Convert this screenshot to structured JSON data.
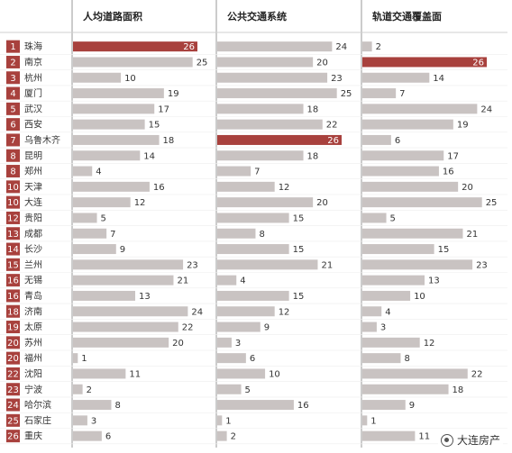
{
  "colors": {
    "bar": "#c9c3c2",
    "highlight": "#a8413d",
    "rank_badge": "#a8413d",
    "grid": "#cfcfcf",
    "divider": "#9a9a9a"
  },
  "watermark": {
    "label": "大连房产",
    "icon": "wechat-channel-icon"
  },
  "chart_data": {
    "type": "bar",
    "orientation": "horizontal",
    "grid": true,
    "xlim": [
      0,
      26
    ],
    "columns": [
      {
        "title": "人均道路面积",
        "highlight_index": 0
      },
      {
        "title": "公共交通系统",
        "highlight_index": 6
      },
      {
        "title": "轨道交通覆盖面",
        "highlight_index": 1
      }
    ],
    "rows": [
      {
        "rank": "1",
        "city": "珠海",
        "values": [
          26,
          24,
          2
        ]
      },
      {
        "rank": "2",
        "city": "南京",
        "values": [
          25,
          20,
          26
        ]
      },
      {
        "rank": "3",
        "city": "杭州",
        "values": [
          10,
          23,
          14
        ]
      },
      {
        "rank": "4",
        "city": "厦门",
        "values": [
          19,
          25,
          7
        ]
      },
      {
        "rank": "5",
        "city": "武汉",
        "values": [
          17,
          18,
          24
        ]
      },
      {
        "rank": "6",
        "city": "西安",
        "values": [
          15,
          22,
          19
        ]
      },
      {
        "rank": "7",
        "city": "乌鲁木齐",
        "values": [
          18,
          26,
          6
        ]
      },
      {
        "rank": "8",
        "city": "昆明",
        "values": [
          14,
          18,
          17
        ]
      },
      {
        "rank": "8",
        "city": "郑州",
        "values": [
          4,
          7,
          16
        ]
      },
      {
        "rank": "10",
        "city": "天津",
        "values": [
          16,
          12,
          20
        ]
      },
      {
        "rank": "10",
        "city": "大连",
        "values": [
          12,
          20,
          25
        ]
      },
      {
        "rank": "12",
        "city": "贵阳",
        "values": [
          5,
          15,
          5
        ]
      },
      {
        "rank": "13",
        "city": "成都",
        "values": [
          7,
          8,
          21
        ]
      },
      {
        "rank": "14",
        "city": "长沙",
        "values": [
          9,
          15,
          15
        ]
      },
      {
        "rank": "15",
        "city": "兰州",
        "values": [
          23,
          21,
          23
        ]
      },
      {
        "rank": "16",
        "city": "无锡",
        "values": [
          21,
          4,
          13
        ]
      },
      {
        "rank": "16",
        "city": "青岛",
        "values": [
          13,
          15,
          10
        ]
      },
      {
        "rank": "18",
        "city": "济南",
        "values": [
          24,
          12,
          4
        ]
      },
      {
        "rank": "19",
        "city": "太原",
        "values": [
          22,
          9,
          3
        ]
      },
      {
        "rank": "20",
        "city": "苏州",
        "values": [
          20,
          3,
          12
        ]
      },
      {
        "rank": "20",
        "city": "福州",
        "values": [
          1,
          6,
          8
        ]
      },
      {
        "rank": "22",
        "city": "沈阳",
        "values": [
          11,
          10,
          22
        ]
      },
      {
        "rank": "23",
        "city": "宁波",
        "values": [
          2,
          5,
          18
        ]
      },
      {
        "rank": "24",
        "city": "哈尔滨",
        "values": [
          8,
          16,
          9
        ]
      },
      {
        "rank": "25",
        "city": "石家庄",
        "values": [
          3,
          1,
          1
        ]
      },
      {
        "rank": "26",
        "city": "重庆",
        "values": [
          6,
          2,
          11
        ]
      }
    ]
  }
}
